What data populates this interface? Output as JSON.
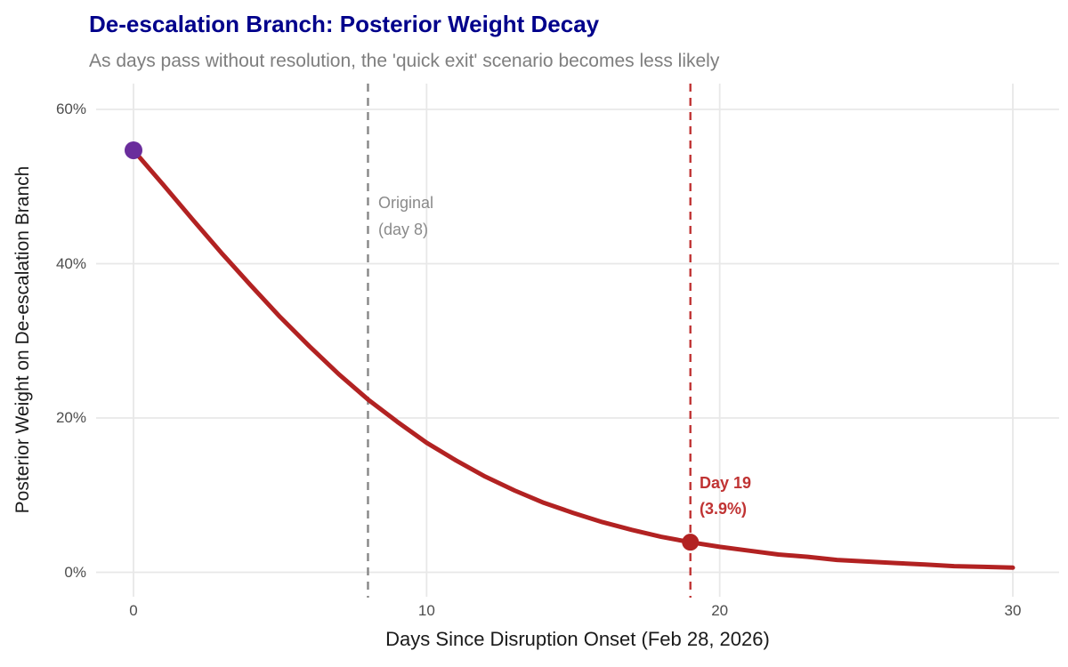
{
  "header": {
    "title": "De-escalation Branch: Posterior Weight Decay",
    "subtitle": "As days pass without resolution, the 'quick exit' scenario becomes less likely"
  },
  "axes": {
    "x": {
      "label": "Days Since Disruption Onset (Feb 28, 2026)",
      "ticks": [
        "0",
        "10",
        "20",
        "30"
      ],
      "tick_values": [
        0,
        10,
        20,
        30
      ],
      "range": [
        0,
        30
      ]
    },
    "y": {
      "label": "Posterior Weight on De-escalation Branch",
      "ticks": [
        "0%",
        "20%",
        "40%",
        "60%"
      ],
      "tick_values": [
        0,
        20,
        40,
        60
      ],
      "range_pct": [
        0,
        60
      ]
    }
  },
  "annotations": {
    "original": {
      "line1": "Original",
      "line2": "(day 8)",
      "day": 8
    },
    "day19": {
      "line1": "Day 19",
      "line2": "(3.9%)",
      "day": 19,
      "value_pct": 3.9
    }
  },
  "chart_data": {
    "type": "line",
    "title": "De-escalation Branch: Posterior Weight Decay",
    "subtitle": "As days pass without resolution, the 'quick exit' scenario becomes less likely",
    "xlabel": "Days Since Disruption Onset (Feb 28, 2026)",
    "ylabel": "Posterior Weight on De-escalation Branch",
    "xlim": [
      0,
      30
    ],
    "ylim_pct": [
      0,
      62
    ],
    "grid": true,
    "legend": "none",
    "x": [
      0,
      1,
      2,
      3,
      4,
      5,
      6,
      7,
      8,
      9,
      10,
      11,
      12,
      13,
      14,
      15,
      16,
      17,
      18,
      19,
      20,
      21,
      22,
      23,
      24,
      25,
      26,
      27,
      28,
      29,
      30
    ],
    "y_pct": [
      54.7,
      50.3,
      45.8,
      41.4,
      37.2,
      33.1,
      29.3,
      25.7,
      22.4,
      19.5,
      16.8,
      14.5,
      12.4,
      10.6,
      9.0,
      7.7,
      6.5,
      5.5,
      4.6,
      3.9,
      3.3,
      2.8,
      2.3,
      2.0,
      1.6,
      1.4,
      1.2,
      1.0,
      0.8,
      0.7,
      0.6
    ],
    "markers": [
      {
        "name": "start-point",
        "x": 0,
        "y_pct": 54.7,
        "color": "#6A2D9C",
        "radius": 10
      },
      {
        "name": "day19-point",
        "x": 19,
        "y_pct": 3.9,
        "color": "#B22222",
        "radius": 9.5
      }
    ],
    "vlines": [
      {
        "name": "original-day8",
        "x": 8,
        "color": "#878787",
        "style": "dashed",
        "label": "Original (day 8)"
      },
      {
        "name": "day19",
        "x": 19,
        "color": "#C03333",
        "style": "dashed",
        "label": "Day 19 (3.9%)"
      }
    ]
  },
  "colors": {
    "title": "#00008B",
    "subtitle": "#7E7E7E",
    "tick_text": "#4D4D4D",
    "axis_title": "#1A1A1A",
    "grid": "#E8E8E8",
    "curve": "#B22222",
    "marker_purple": "#6A2D9C",
    "ref_gray": "#878787",
    "ref_red": "#C03333"
  }
}
